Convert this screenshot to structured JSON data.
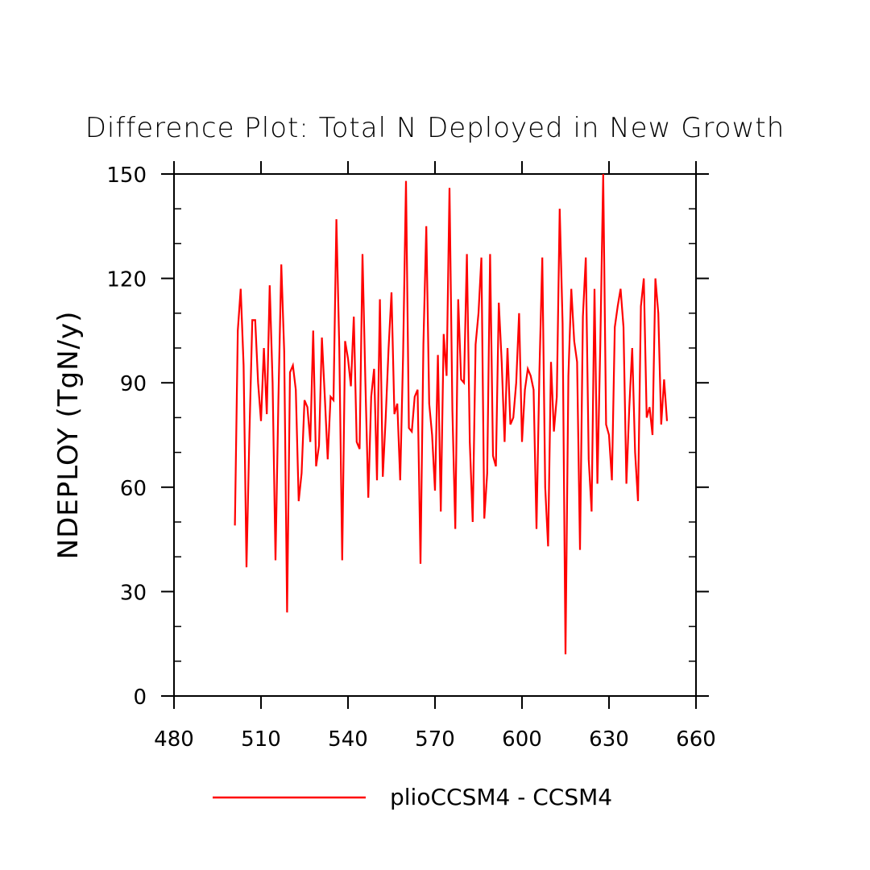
{
  "chart_data": {
    "type": "line",
    "title": "Difference Plot: Total N Deployed in New Growth",
    "xlabel": "",
    "ylabel": "NDEPLOY  (TgN/y)",
    "xlim": [
      480,
      660
    ],
    "ylim": [
      0,
      150
    ],
    "xticks": [
      480,
      510,
      540,
      570,
      600,
      630,
      660
    ],
    "yticks": [
      0,
      30,
      60,
      90,
      120,
      150
    ],
    "grid": false,
    "legend_position": "bottom",
    "series": [
      {
        "name": "plioCCSM4 - CCSM4",
        "color": "#ff0000",
        "x": [
          501,
          502,
          503,
          504,
          505,
          506,
          507,
          508,
          509,
          510,
          511,
          512,
          513,
          514,
          515,
          516,
          517,
          518,
          519,
          520,
          521,
          522,
          523,
          524,
          525,
          526,
          527,
          528,
          529,
          530,
          531,
          532,
          533,
          534,
          535,
          536,
          537,
          538,
          539,
          540,
          541,
          542,
          543,
          544,
          545,
          546,
          547,
          548,
          549,
          550,
          551,
          552,
          553,
          554,
          555,
          556,
          557,
          558,
          559,
          560,
          561,
          562,
          563,
          564,
          565,
          566,
          567,
          568,
          569,
          570,
          571,
          572,
          573,
          574,
          575,
          576,
          577,
          578,
          579,
          580,
          581,
          582,
          583,
          584,
          585,
          586,
          587,
          588,
          589,
          590,
          591,
          592,
          593,
          594,
          595,
          596,
          597,
          598,
          599,
          600,
          601,
          602,
          603,
          604,
          605,
          606,
          607,
          608,
          609,
          610,
          611,
          612,
          613,
          614,
          615,
          616,
          617,
          618,
          619,
          620,
          621,
          622,
          623,
          624,
          625,
          626,
          627,
          628,
          629,
          630,
          631,
          632,
          633,
          634,
          635,
          636,
          637,
          638,
          639,
          640,
          641,
          642,
          643,
          644,
          645,
          646,
          647,
          648,
          649,
          650
        ],
        "y": [
          49,
          105,
          117,
          95,
          37,
          75,
          108,
          108,
          90,
          79,
          100,
          81,
          118,
          90,
          39,
          85,
          124,
          99,
          24,
          93,
          95,
          88,
          56,
          64,
          85,
          83,
          73,
          105,
          66,
          72,
          103,
          86,
          68,
          86,
          85,
          137,
          100,
          39,
          102,
          97,
          89,
          109,
          73,
          71,
          127,
          90,
          57,
          86,
          94,
          62,
          114,
          63,
          80,
          100,
          116,
          81,
          84,
          62,
          98,
          148,
          77,
          76,
          86,
          88,
          38,
          101,
          135,
          84,
          75,
          59,
          98,
          53,
          104,
          92,
          146,
          82,
          48,
          114,
          91,
          90,
          127,
          73,
          50,
          101,
          110,
          126,
          51,
          64,
          127,
          69,
          66,
          113,
          96,
          73,
          100,
          78,
          80,
          90,
          110,
          73,
          88,
          94,
          92,
          88,
          48,
          93,
          126,
          60,
          43,
          96,
          76,
          86,
          140,
          107,
          12,
          92,
          117,
          102,
          96,
          42,
          109,
          126,
          68,
          53,
          117,
          61,
          101,
          150,
          78,
          75,
          62,
          106,
          112,
          117,
          106,
          61,
          83,
          100,
          70,
          56,
          112,
          120,
          80,
          83,
          75,
          120,
          110,
          78,
          91,
          79
        ]
      }
    ]
  }
}
